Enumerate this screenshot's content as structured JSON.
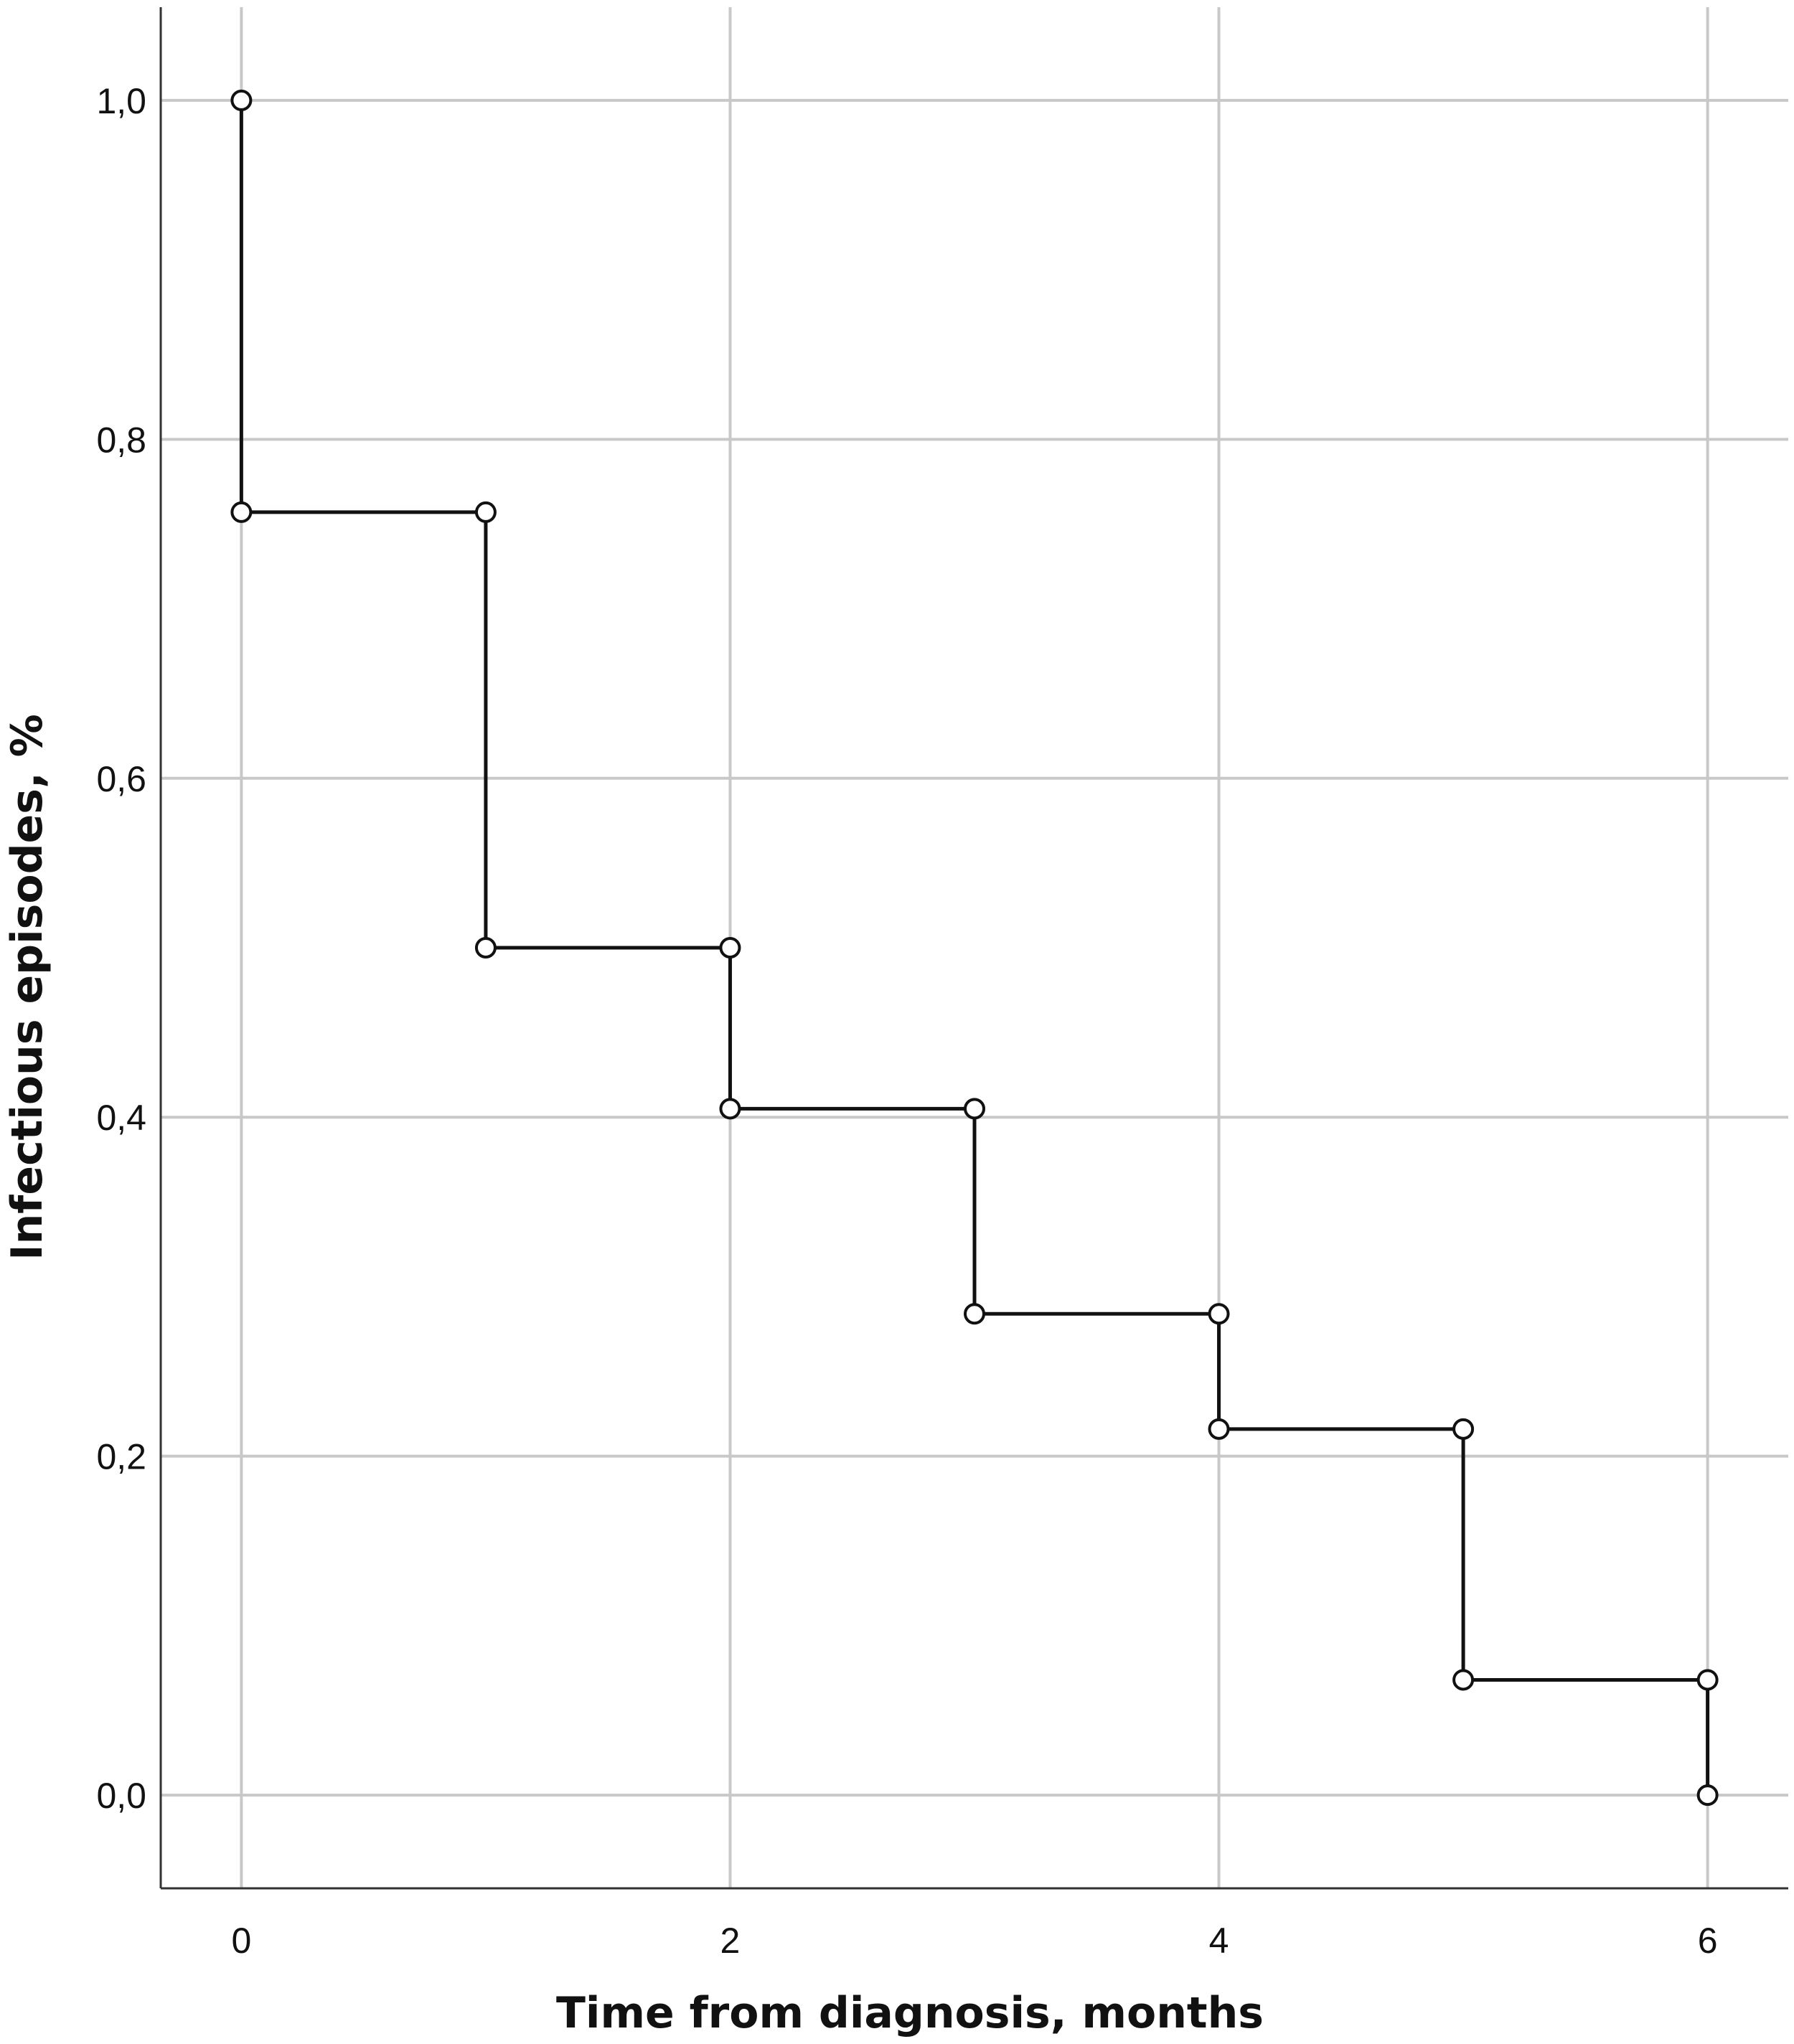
{
  "chart_data": {
    "type": "line",
    "step": true,
    "title": "",
    "xlabel": "Time from diagnosis, months",
    "ylabel": "Infectious episodes, %",
    "xlim": [
      -0.33,
      6.33
    ],
    "ylim": [
      -0.055,
      1.055
    ],
    "x_ticks": [
      0,
      2,
      4,
      6
    ],
    "x_tick_labels": [
      "0",
      "2",
      "4",
      "6"
    ],
    "y_ticks": [
      0.0,
      0.2,
      0.4,
      0.6,
      0.8,
      1.0
    ],
    "y_tick_labels": [
      "0,0",
      "0,2",
      "0,4",
      "0,6",
      "0,8",
      "1,0"
    ],
    "grid": true,
    "legend": "none",
    "series": [
      {
        "x": [
          0,
          0,
          1,
          1,
          2,
          2,
          3,
          3,
          4,
          4,
          5,
          5,
          6,
          6
        ],
        "y": [
          1.0,
          0.757,
          0.757,
          0.5,
          0.5,
          0.405,
          0.405,
          0.284,
          0.284,
          0.216,
          0.216,
          0.068,
          0.068,
          0.0
        ],
        "markers": "open-circle",
        "color": "#111111"
      }
    ],
    "colors": {
      "grid": "#c8c8c8",
      "axis": "#333333",
      "line": "#111111"
    }
  }
}
